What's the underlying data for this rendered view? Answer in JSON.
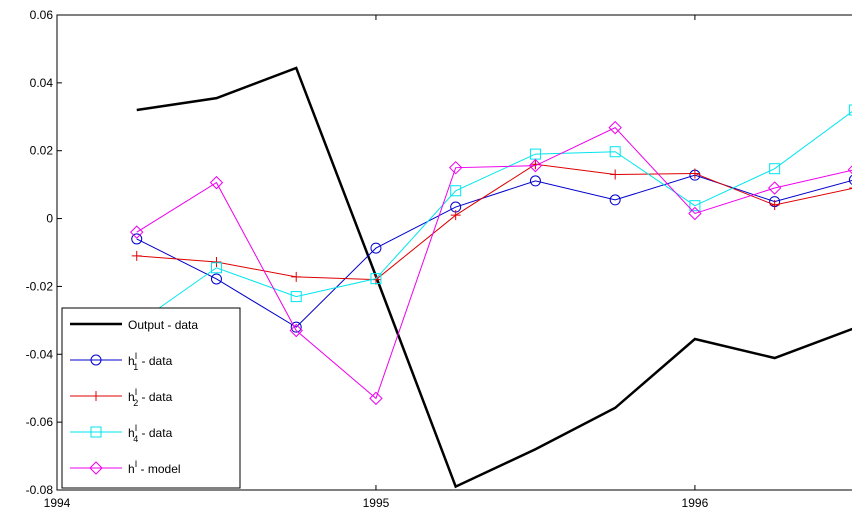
{
  "chart_data": {
    "type": "line",
    "x": [
      1994.25,
      1994.5,
      1994.75,
      1995,
      1995.25,
      1995.5,
      1995.75,
      1996,
      1996.25,
      1996.5
    ],
    "series": [
      {
        "name": "Output - data",
        "color": "#000000",
        "marker": "none",
        "values": [
          0.032,
          0.0355,
          0.0444,
          -0.017,
          -0.079,
          -0.068,
          -0.0558,
          -0.0355,
          -0.0411,
          -0.0323
        ]
      },
      {
        "name": "h",
        "superscript": "I",
        "subscript": "1",
        "suffix": " - data",
        "color": "#0000cc",
        "marker": "circle",
        "values": [
          -0.006,
          -0.0178,
          -0.032,
          -0.0087,
          0.0034,
          0.0111,
          0.0055,
          0.0128,
          0.005,
          0.0114
        ]
      },
      {
        "name": "h",
        "superscript": "I",
        "subscript": "2",
        "suffix": " - data",
        "color": "#dd0000",
        "marker": "plus",
        "values": [
          -0.011,
          -0.0128,
          -0.0172,
          -0.018,
          0.001,
          0.016,
          0.013,
          0.0133,
          0.004,
          0.009
        ]
      },
      {
        "name": "h",
        "superscript": "I",
        "subscript": "4",
        "suffix": " - data",
        "color": "#00e5ee",
        "marker": "square",
        "values": [
          -0.031,
          -0.0145,
          -0.023,
          -0.0177,
          0.0082,
          0.019,
          0.0197,
          0.0038,
          0.0147,
          0.032
        ]
      },
      {
        "name": "h",
        "superscript": "I",
        "suffix": " - model",
        "color": "#ee00ee",
        "marker": "diamond",
        "values": [
          -0.004,
          0.0106,
          -0.033,
          -0.053,
          0.015,
          0.0156,
          0.0268,
          0.0015,
          0.009,
          0.0144
        ]
      }
    ],
    "xlim": [
      1994,
      1996.5
    ],
    "xticks": [
      1994,
      1995,
      1996
    ],
    "ylim": [
      -0.08,
      0.06
    ],
    "yticks": [
      -0.08,
      -0.06,
      -0.04,
      -0.02,
      0,
      0.02,
      0.04,
      0.06
    ],
    "legend": "lower left"
  }
}
